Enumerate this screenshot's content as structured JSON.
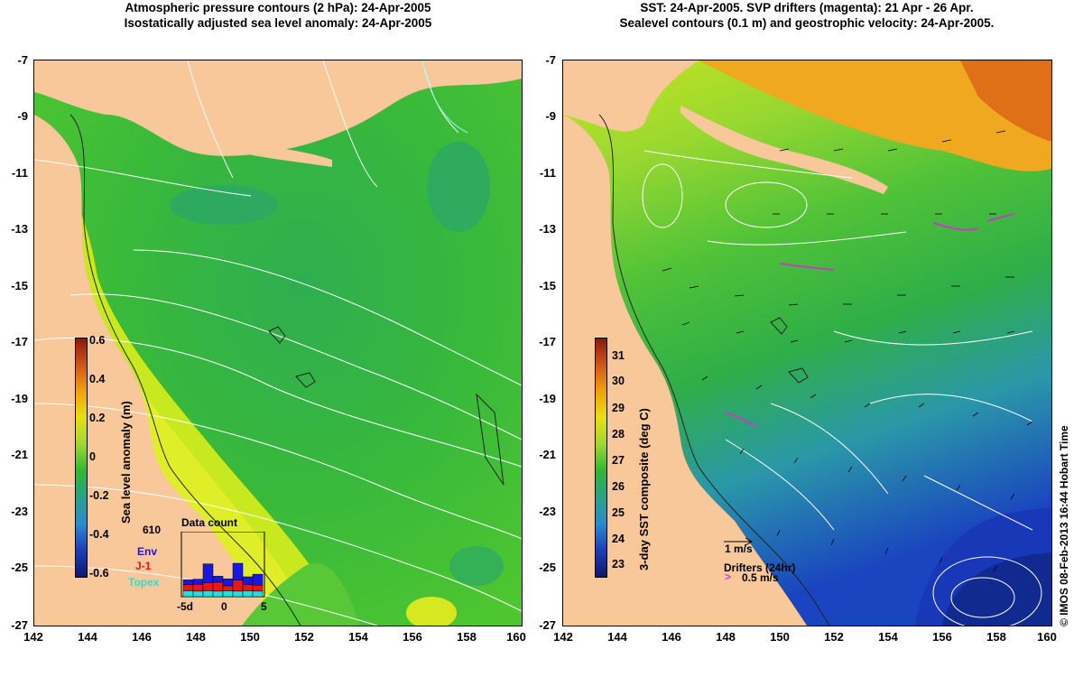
{
  "left_panel": {
    "title_line1": "Atmospheric pressure contours (2 hPa): 24-Apr-2005",
    "title_line2": "Isostatically adjusted sea level anomaly: 24-Apr-2005",
    "colorbar": {
      "label": "Sea level anomaly (m)",
      "ticks": [
        "0.6",
        "0.4",
        "0.2",
        "0",
        "-0.2",
        "-0.4",
        "-0.6"
      ],
      "colors": [
        "#8a1a0a",
        "#d0561a",
        "#f0a20d",
        "#e8e010",
        "#9ed830",
        "#2fb833",
        "#27a28c",
        "#2a8bd0",
        "#1a3eb8",
        "#0f1870"
      ]
    },
    "data_count": {
      "title": "Data count",
      "max_label": "610",
      "legend": [
        {
          "label": "Env",
          "color": "#1818e0"
        },
        {
          "label": "J-1",
          "color": "#e81818"
        },
        {
          "label": "Topex",
          "color": "#22e0e0"
        }
      ],
      "xticks": [
        "-5d",
        "0",
        "5"
      ],
      "bars": [
        {
          "env": 0.25,
          "j1": 0.3,
          "topex": 0.3
        },
        {
          "env": 0.25,
          "j1": 0.35,
          "topex": 0.28
        },
        {
          "env": 0.95,
          "j1": 0.4,
          "topex": 0.3
        },
        {
          "env": 0.3,
          "j1": 0.45,
          "topex": 0.28
        },
        {
          "env": 0.35,
          "j1": 0.25,
          "topex": 0.3
        },
        {
          "env": 0.85,
          "j1": 0.55,
          "topex": 0.28
        },
        {
          "env": 0.4,
          "j1": 0.3,
          "topex": 0.3
        },
        {
          "env": 0.55,
          "j1": 0.3,
          "topex": 0.28
        }
      ]
    }
  },
  "right_panel": {
    "title_line1": "SST: 24-Apr-2005. SVP drifters (magenta): 21 Apr - 26 Apr.",
    "title_line2": "Sealevel contours (0.1 m) and geostrophic velocity: 24-Apr-2005.",
    "colorbar": {
      "label": "3-day SST composite (deg C)",
      "ticks": [
        "31",
        "30",
        "29",
        "28",
        "27",
        "26",
        "25",
        "24",
        "23"
      ],
      "colors": [
        "#8a1a0a",
        "#d0561a",
        "#f0a20d",
        "#e8e010",
        "#9ed830",
        "#2fb833",
        "#27a28c",
        "#2a8bd0",
        "#1a3eb8",
        "#0f1870"
      ]
    },
    "velocity_scale": "1 m/s",
    "drifters_label": "Drifters (24hr)",
    "drifter_speed": "0.5 m/s",
    "credit": "© IMOS 08-Feb-2013 16:44 Hobart Time"
  },
  "axes": {
    "x_ticks": [
      "142",
      "144",
      "146",
      "148",
      "150",
      "152",
      "154",
      "156",
      "158",
      "160"
    ],
    "y_ticks": [
      "-7",
      "-9",
      "-11",
      "-13",
      "-15",
      "-17",
      "-19",
      "-21",
      "-23",
      "-25",
      "-27"
    ]
  },
  "colors": {
    "land": "#f8c89a",
    "sea_green": "#3bbf3a",
    "coast_yellow": "#c8e820",
    "contour": "#ffffff"
  }
}
